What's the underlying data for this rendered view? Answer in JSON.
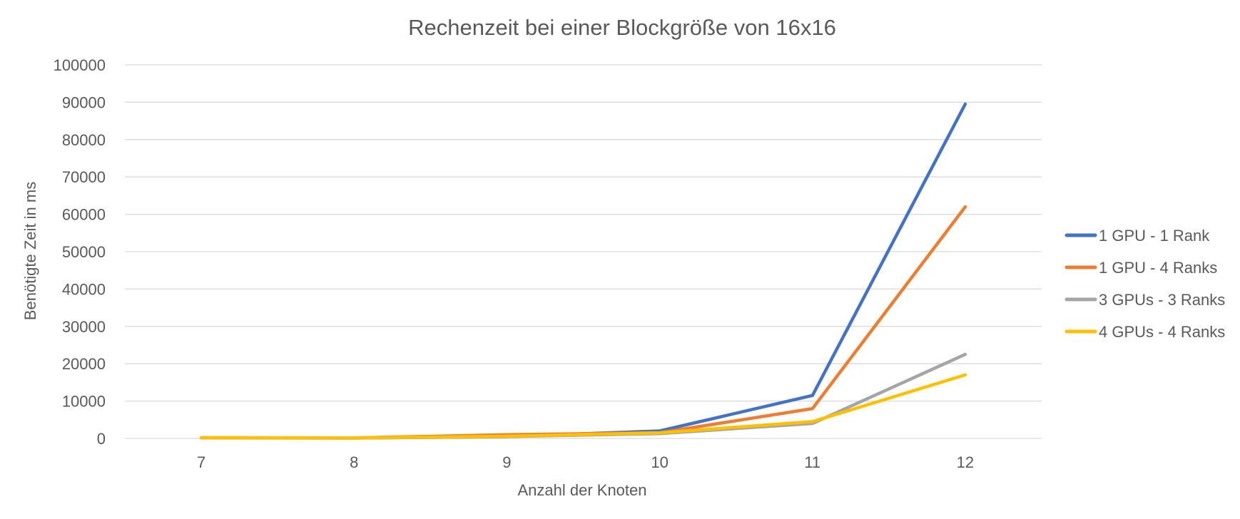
{
  "chart_data": {
    "type": "line",
    "title": "Rechenzeit bei einer Blockgröße von 16x16",
    "xlabel": "Anzahl der Knoten",
    "ylabel": "Benötigte Zeit in ms",
    "categories": [
      "7",
      "8",
      "9",
      "10",
      "11",
      "12"
    ],
    "ylim": [
      0,
      100000
    ],
    "yticks": [
      0,
      10000,
      20000,
      30000,
      40000,
      50000,
      60000,
      70000,
      80000,
      90000,
      100000
    ],
    "grid": true,
    "legend_position": "right",
    "series": [
      {
        "name": "1 GPU - 1 Rank",
        "color": "#4472C4",
        "values": [
          150,
          120,
          500,
          2000,
          11500,
          89500
        ]
      },
      {
        "name": "1 GPU - 4 Ranks",
        "color": "#ED7D31",
        "values": [
          200,
          150,
          1000,
          1500,
          8000,
          62000
        ]
      },
      {
        "name": "3 GPUs - 3 Ranks",
        "color": "#A5A5A5",
        "values": [
          150,
          100,
          500,
          1300,
          4000,
          22500
        ]
      },
      {
        "name": "4 GPUs - 4 Ranks",
        "color": "#FFC000",
        "values": [
          200,
          150,
          600,
          1500,
          4500,
          17000
        ]
      }
    ]
  }
}
